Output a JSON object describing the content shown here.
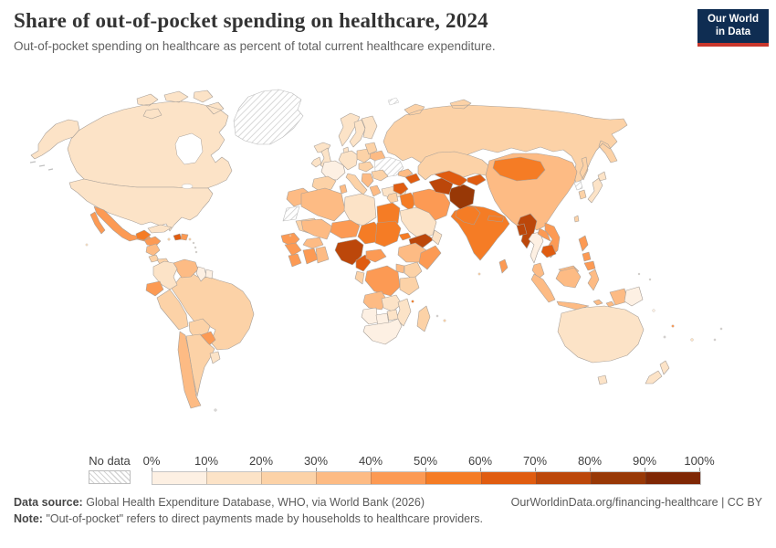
{
  "header": {
    "title": "Share of out-of-pocket spending on healthcare, 2024",
    "subtitle": "Out-of-pocket spending on healthcare as percent of total current healthcare expenditure.",
    "logo_line1": "Our World",
    "logo_line2": "in Data"
  },
  "legend": {
    "no_data_label": "No data",
    "tick_labels": [
      "0%",
      "10%",
      "20%",
      "30%",
      "40%",
      "50%",
      "60%",
      "70%",
      "80%",
      "90%",
      "100%"
    ]
  },
  "footer": {
    "source_label": "Data source:",
    "source_text": "Global Health Expenditure Database, WHO, via World Bank (2026)",
    "link_text": "OurWorldinData.org/financing-healthcare | CC BY",
    "note_label": "Note:",
    "note_text": "\"Out-of-pocket\" refers to direct payments made by households to healthcare providers."
  },
  "chart_data": {
    "type": "heatmap",
    "subtype": "world_choropleth",
    "title": "Share of out-of-pocket spending on healthcare, 2024",
    "unit_label": "% of total current healthcare expenditure",
    "range": [
      0,
      100
    ],
    "bin_size": 10,
    "legend_position": "bottom",
    "no_data_style": "hatched",
    "colors": [
      "#fdf0e3",
      "#fce3c7",
      "#fcd2a7",
      "#fdbb84",
      "#fc9a54",
      "#f57c25",
      "#e05c10",
      "#bc470a",
      "#983806",
      "#7f2704"
    ],
    "regions": [
      {
        "id": "russia",
        "name": "Russia",
        "value": 27
      },
      {
        "id": "canada",
        "name": "Canada",
        "value": 13
      },
      {
        "id": "greenland",
        "name": "Greenland",
        "value": null
      },
      {
        "id": "united-states",
        "name": "United States",
        "value": 11
      },
      {
        "id": "mexico",
        "name": "Mexico",
        "value": 41
      },
      {
        "id": "guatemala",
        "name": "Guatemala",
        "value": 52
      },
      {
        "id": "honduras",
        "name": "Honduras",
        "value": 48
      },
      {
        "id": "nicaragua",
        "name": "Nicaragua",
        "value": 31
      },
      {
        "id": "costa-rica",
        "name": "Costa Rica",
        "value": 20
      },
      {
        "id": "panama",
        "name": "Panama",
        "value": 29
      },
      {
        "id": "cuba",
        "name": "Cuba",
        "value": 10
      },
      {
        "id": "haiti",
        "name": "Haiti",
        "value": 62
      },
      {
        "id": "dominican-republic",
        "name": "Dominican Republic",
        "value": 42
      },
      {
        "id": "brazil",
        "name": "Brazil",
        "value": 23
      },
      {
        "id": "colombia",
        "name": "Colombia",
        "value": 13
      },
      {
        "id": "venezuela",
        "name": "Venezuela",
        "value": 38
      },
      {
        "id": "guyana",
        "name": "Guyana",
        "value": 7
      },
      {
        "id": "suriname",
        "name": "Suriname",
        "value": 9
      },
      {
        "id": "ecuador",
        "name": "Ecuador",
        "value": 41
      },
      {
        "id": "peru",
        "name": "Peru",
        "value": 27
      },
      {
        "id": "bolivia",
        "name": "Bolivia",
        "value": 26
      },
      {
        "id": "paraguay",
        "name": "Paraguay",
        "value": 41
      },
      {
        "id": "argentina",
        "name": "Argentina",
        "value": 24
      },
      {
        "id": "chile",
        "name": "Chile",
        "value": 32
      },
      {
        "id": "uruguay",
        "name": "Uruguay",
        "value": 15
      },
      {
        "id": "iceland",
        "name": "Iceland",
        "value": 15
      },
      {
        "id": "united-kingdom",
        "name": "United Kingdom",
        "value": 13
      },
      {
        "id": "ireland",
        "name": "Ireland",
        "value": 11
      },
      {
        "id": "norway",
        "name": "Norway",
        "value": 14
      },
      {
        "id": "sweden",
        "name": "Sweden",
        "value": 13
      },
      {
        "id": "finland",
        "name": "Finland",
        "value": 18
      },
      {
        "id": "denmark",
        "name": "Denmark",
        "value": 14
      },
      {
        "id": "france",
        "name": "France",
        "value": 9
      },
      {
        "id": "germany",
        "name": "Germany",
        "value": 11
      },
      {
        "id": "spain",
        "name": "Spain",
        "value": 20
      },
      {
        "id": "italy",
        "name": "Italy",
        "value": 22
      },
      {
        "id": "poland",
        "name": "Poland",
        "value": 21
      },
      {
        "id": "hungary",
        "name": "Hungary",
        "value": 26
      },
      {
        "id": "lithuania",
        "name": "Lithuania",
        "value": 29
      },
      {
        "id": "belarus",
        "name": "Belarus",
        "value": 32
      },
      {
        "id": "ukraine",
        "name": "Ukraine",
        "value": null
      },
      {
        "id": "romania",
        "name": "Romania",
        "value": 26
      },
      {
        "id": "serbia",
        "name": "Serbia",
        "value": 36
      },
      {
        "id": "greece",
        "name": "Greece",
        "value": 33
      },
      {
        "id": "turkey",
        "name": "Turkey",
        "value": 16
      },
      {
        "id": "georgia",
        "name": "Georgia",
        "value": 30
      },
      {
        "id": "azerbaijan",
        "name": "Azerbaijan",
        "value": 64
      },
      {
        "id": "syria",
        "name": "Syria",
        "value": 63
      },
      {
        "id": "jordan",
        "name": "Jordan",
        "value": 26
      },
      {
        "id": "iraq",
        "name": "Iraq",
        "value": 50
      },
      {
        "id": "iran",
        "name": "Iran",
        "value": 45
      },
      {
        "id": "saudi-arabia",
        "name": "Saudi Arabia",
        "value": 14
      },
      {
        "id": "yemen",
        "name": "Yemen",
        "value": 72
      },
      {
        "id": "oman",
        "name": "Oman",
        "value": 12
      },
      {
        "id": "kazakhstan",
        "name": "Kazakhstan",
        "value": 26
      },
      {
        "id": "india",
        "name": "India",
        "value": 50
      },
      {
        "id": "pakistan",
        "name": "Pakistan",
        "value": 53
      },
      {
        "id": "afghanistan",
        "name": "Afghanistan",
        "value": 80
      },
      {
        "id": "turkmenistan",
        "name": "Turkmenistan",
        "value": 76
      },
      {
        "id": "uzbekistan",
        "name": "Uzbekistan",
        "value": 62
      },
      {
        "id": "tajikistan",
        "name": "Tajikistan",
        "value": 60
      },
      {
        "id": "china",
        "name": "China",
        "value": 34
      },
      {
        "id": "mongolia",
        "name": "Mongolia",
        "value": 50
      },
      {
        "id": "north-korea",
        "name": "North Korea",
        "value": null
      },
      {
        "id": "south-korea",
        "name": "South Korea",
        "value": 29
      },
      {
        "id": "japan",
        "name": "Japan",
        "value": 13
      },
      {
        "id": "taiwan",
        "name": "Taiwan",
        "value": 27
      },
      {
        "id": "nepal",
        "name": "Nepal",
        "value": 52
      },
      {
        "id": "sri-lanka",
        "name": "Sri Lanka",
        "value": 43
      },
      {
        "id": "myanmar",
        "name": "Myanmar",
        "value": 74
      },
      {
        "id": "bangladesh",
        "name": "Bangladesh",
        "value": 72
      },
      {
        "id": "thailand",
        "name": "Thailand",
        "value": 9
      },
      {
        "id": "laos",
        "name": "Laos",
        "value": 42
      },
      {
        "id": "vietnam",
        "name": "Vietnam",
        "value": 40
      },
      {
        "id": "cambodia",
        "name": "Cambodia",
        "value": 61
      },
      {
        "id": "malaysia",
        "name": "Malaysia",
        "value": 33
      },
      {
        "id": "philippines",
        "name": "Philippines",
        "value": 48
      },
      {
        "id": "indonesia",
        "name": "Indonesia",
        "value": 32
      },
      {
        "id": "papua-new-guinea",
        "name": "Papua New Guinea",
        "value": 8
      },
      {
        "id": "australia",
        "name": "Australia",
        "value": 14
      },
      {
        "id": "new-zealand",
        "name": "New Zealand",
        "value": 12
      },
      {
        "id": "morocco",
        "name": "Morocco",
        "value": 39
      },
      {
        "id": "western-sahara",
        "name": "Western Sahara",
        "value": null
      },
      {
        "id": "algeria",
        "name": "Algeria",
        "value": 34
      },
      {
        "id": "tunisia",
        "name": "Tunisia",
        "value": 36
      },
      {
        "id": "libya",
        "name": "Libya",
        "value": 12
      },
      {
        "id": "egypt",
        "name": "Egypt",
        "value": 58
      },
      {
        "id": "mauritania",
        "name": "Mauritania",
        "value": 28
      },
      {
        "id": "mali",
        "name": "Mali",
        "value": 36
      },
      {
        "id": "niger",
        "name": "Niger",
        "value": 47
      },
      {
        "id": "chad",
        "name": "Chad",
        "value": 57
      },
      {
        "id": "sudan",
        "name": "Sudan",
        "value": 52
      },
      {
        "id": "eritrea",
        "name": "Eritrea",
        "value": 50
      },
      {
        "id": "senegal",
        "name": "Senegal",
        "value": 44
      },
      {
        "id": "guinea",
        "name": "Guinea",
        "value": 45
      },
      {
        "id": "sierra-leone",
        "name": "Sierra Leone",
        "value": 43
      },
      {
        "id": "cote-divoire",
        "name": "Cote d'Ivoire",
        "value": 40
      },
      {
        "id": "ghana",
        "name": "Ghana",
        "value": 36
      },
      {
        "id": "burkina-faso",
        "name": "Burkina Faso",
        "value": 33
      },
      {
        "id": "nigeria",
        "name": "Nigeria",
        "value": 75
      },
      {
        "id": "cameroon",
        "name": "Cameroon",
        "value": 66
      },
      {
        "id": "central-african-republic",
        "name": "Central African Republic",
        "value": 42
      },
      {
        "id": "ethiopia",
        "name": "Ethiopia",
        "value": 34
      },
      {
        "id": "somalia",
        "name": "Somalia",
        "value": 45
      },
      {
        "id": "kenya",
        "name": "Kenya",
        "value": 24
      },
      {
        "id": "uganda",
        "name": "Uganda",
        "value": 38
      },
      {
        "id": "democratic-republic-of-congo",
        "name": "Democratic Republic of Congo",
        "value": 40
      },
      {
        "id": "congo",
        "name": "Congo",
        "value": 25
      },
      {
        "id": "tanzania",
        "name": "Tanzania",
        "value": 23
      },
      {
        "id": "angola",
        "name": "Angola",
        "value": 30
      },
      {
        "id": "zambia",
        "name": "Zambia",
        "value": 12
      },
      {
        "id": "mozambique",
        "name": "Mozambique",
        "value": 10
      },
      {
        "id": "zimbabwe",
        "name": "Zimbabwe",
        "value": 12
      },
      {
        "id": "namibia",
        "name": "Namibia",
        "value": 8
      },
      {
        "id": "botswana",
        "name": "Botswana",
        "value": 6
      },
      {
        "id": "south-africa",
        "name": "South Africa",
        "value": 6
      },
      {
        "id": "madagascar",
        "name": "Madagascar",
        "value": 28
      }
    ]
  }
}
